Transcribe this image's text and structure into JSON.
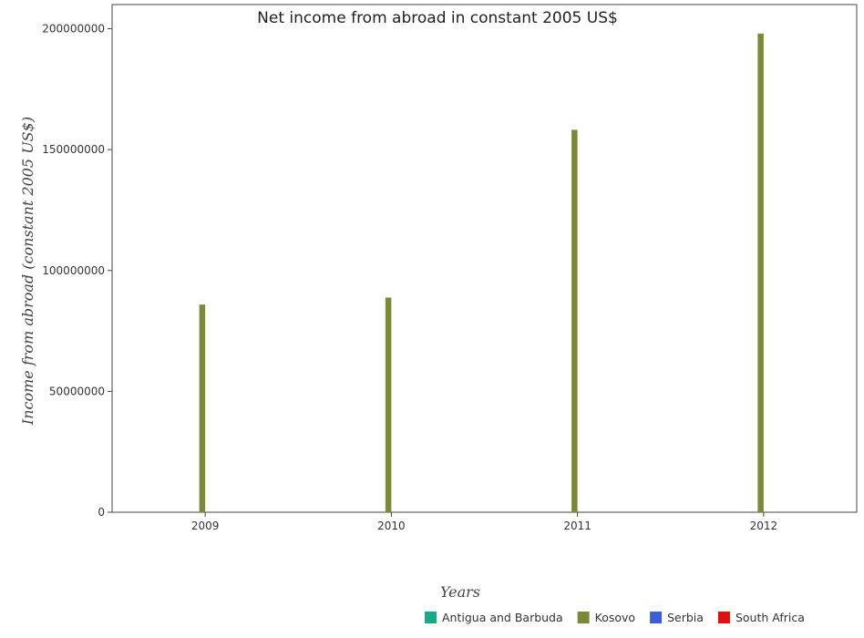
{
  "chart_data": {
    "type": "bar",
    "title": "Net income from abroad in constant 2005 US$",
    "xlabel": "Years",
    "ylabel": "Income from abroad (constant 2005 US$)",
    "categories": [
      "2009",
      "2010",
      "2011",
      "2012"
    ],
    "series": [
      {
        "name": "Antigua and Barbuda",
        "color": "#1aa88a",
        "values": [
          0,
          0,
          0,
          0
        ]
      },
      {
        "name": "Kosovo",
        "color": "#7a8a3a",
        "values": [
          85900000,
          88800000,
          158200000,
          198000000
        ]
      },
      {
        "name": "Serbia",
        "color": "#3c5ed8",
        "values": [
          0,
          0,
          0,
          0
        ]
      },
      {
        "name": "South Africa",
        "color": "#e01010",
        "values": [
          0,
          0,
          0,
          0
        ]
      }
    ],
    "ylim": [
      0,
      210000000
    ],
    "yticks": [
      0,
      50000000,
      100000000,
      150000000,
      200000000
    ],
    "ytick_labels": [
      "0",
      "50000000",
      "100000000",
      "150000000",
      "200000000"
    ],
    "grid": false,
    "legend_position": "bottom-right"
  }
}
